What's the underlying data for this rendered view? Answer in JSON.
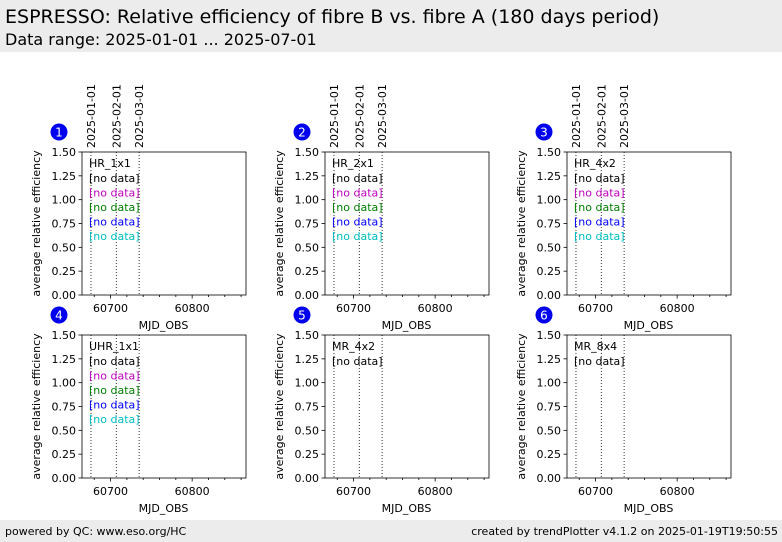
{
  "header": {
    "title": "ESPRESSO: Relative efficiency of fibre B vs. fibre A (180 days period)",
    "subtitle": "Data range: 2025-01-01 ... 2025-07-01"
  },
  "footer": {
    "left": "powered by QC: www.eso.org/HC",
    "right": "created by trendPlotter v4.1.2 on 2025-01-19T19:50:55"
  },
  "colors": {
    "header_bg": "#ececec",
    "badge": "#0000ee",
    "no_data_colors": [
      "#000000",
      "#bf00bf",
      "#007f00",
      "#0000ff",
      "#00bfbf"
    ]
  },
  "chart_data": [
    {
      "type": "scatter",
      "panel_number": "1",
      "setting": "HR_1x1",
      "x": [],
      "y": [],
      "xlabel": "MJD_OBS",
      "ylabel": "average relative efficiency",
      "xlim": [
        60665,
        60866
      ],
      "ylim": [
        0.0,
        1.5
      ],
      "xticks": [
        60700,
        60800
      ],
      "yticks": [
        0.0,
        0.25,
        0.5,
        0.75,
        1.0,
        1.25,
        1.5
      ],
      "date_markers": [
        {
          "x": 60676,
          "label": "2025-01-01"
        },
        {
          "x": 60707,
          "label": "2025-02-01"
        },
        {
          "x": 60735,
          "label": "2025-03-01"
        }
      ],
      "annotations": [
        "[no data]",
        "[no data]",
        "[no data]",
        "[no data]",
        "[no data]"
      ]
    },
    {
      "type": "scatter",
      "panel_number": "2",
      "setting": "HR_2x1",
      "x": [],
      "y": [],
      "xlabel": "MJD_OBS",
      "ylabel": "average relative efficiency",
      "xlim": [
        60665,
        60866
      ],
      "ylim": [
        0.0,
        1.5
      ],
      "xticks": [
        60700,
        60800
      ],
      "yticks": [
        0.0,
        0.25,
        0.5,
        0.75,
        1.0,
        1.25,
        1.5
      ],
      "date_markers": [
        {
          "x": 60676,
          "label": "2025-01-01"
        },
        {
          "x": 60707,
          "label": "2025-02-01"
        },
        {
          "x": 60735,
          "label": "2025-03-01"
        }
      ],
      "annotations": [
        "[no data]",
        "[no data]",
        "[no data]",
        "[no data]",
        "[no data]"
      ]
    },
    {
      "type": "scatter",
      "panel_number": "3",
      "setting": "HR_4x2",
      "x": [],
      "y": [],
      "xlabel": "MJD_OBS",
      "ylabel": "average relative efficiency",
      "xlim": [
        60665,
        60866
      ],
      "ylim": [
        0.0,
        1.5
      ],
      "xticks": [
        60700,
        60800
      ],
      "yticks": [
        0.0,
        0.25,
        0.5,
        0.75,
        1.0,
        1.25,
        1.5
      ],
      "date_markers": [
        {
          "x": 60676,
          "label": "2025-01-01"
        },
        {
          "x": 60707,
          "label": "2025-02-01"
        },
        {
          "x": 60735,
          "label": "2025-03-01"
        }
      ],
      "annotations": [
        "[no data]",
        "[no data]",
        "[no data]",
        "[no data]",
        "[no data]"
      ]
    },
    {
      "type": "scatter",
      "panel_number": "4",
      "setting": "UHR_1x1",
      "x": [],
      "y": [],
      "xlabel": "MJD_OBS",
      "ylabel": "average relative efficiency",
      "xlim": [
        60665,
        60866
      ],
      "ylim": [
        0.0,
        1.5
      ],
      "xticks": [
        60700,
        60800
      ],
      "yticks": [
        0.0,
        0.25,
        0.5,
        0.75,
        1.0,
        1.25,
        1.5
      ],
      "date_markers": [
        {
          "x": 60676
        },
        {
          "x": 60707
        },
        {
          "x": 60735
        }
      ],
      "annotations": [
        "[no data]",
        "[no data]",
        "[no data]",
        "[no data]",
        "[no data]"
      ]
    },
    {
      "type": "scatter",
      "panel_number": "5",
      "setting": "MR_4x2",
      "x": [],
      "y": [],
      "xlabel": "MJD_OBS",
      "ylabel": "average relative efficiency",
      "xlim": [
        60665,
        60866
      ],
      "ylim": [
        0.0,
        1.5
      ],
      "xticks": [
        60700,
        60800
      ],
      "yticks": [
        0.0,
        0.25,
        0.5,
        0.75,
        1.0,
        1.25,
        1.5
      ],
      "date_markers": [
        {
          "x": 60676
        },
        {
          "x": 60707
        },
        {
          "x": 60735
        }
      ],
      "annotations": [
        "[no data]"
      ]
    },
    {
      "type": "scatter",
      "panel_number": "6",
      "setting": "MR_8x4",
      "x": [],
      "y": [],
      "xlabel": "MJD_OBS",
      "ylabel": "average relative efficiency",
      "xlim": [
        60665,
        60866
      ],
      "ylim": [
        0.0,
        1.5
      ],
      "xticks": [
        60700,
        60800
      ],
      "yticks": [
        0.0,
        0.25,
        0.5,
        0.75,
        1.0,
        1.25,
        1.5
      ],
      "date_markers": [
        {
          "x": 60676
        },
        {
          "x": 60707
        },
        {
          "x": 60735
        }
      ],
      "annotations": [
        "[no data]"
      ]
    }
  ]
}
